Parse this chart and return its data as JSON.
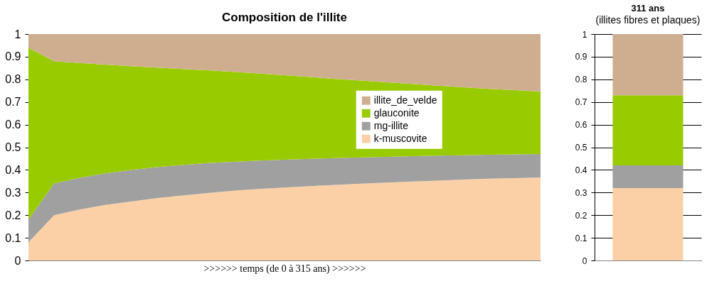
{
  "chart_data": [
    {
      "type": "area",
      "title": "Composition de l'illite",
      "xlabel": ">>>>>> temps (de 0 à 315 ans) >>>>>>",
      "categories": [
        null,
        null,
        null,
        null,
        null,
        null,
        null,
        null,
        null,
        null,
        null,
        null,
        null,
        null,
        null,
        null,
        null,
        null,
        null,
        null,
        null
      ],
      "stacked": true,
      "ylim": [
        0,
        1
      ],
      "yticks": [
        0,
        0.1,
        0.2,
        0.3,
        0.4,
        0.5,
        0.6,
        0.7,
        0.8,
        0.9,
        1
      ],
      "grid": false,
      "legend": "top right",
      "tick_labels": "y",
      "series": [
        {
          "name": "k-muscovite",
          "color": "#fcd0a6",
          "values": [
            0.08,
            0.2,
            0.225,
            0.245,
            0.26,
            0.275,
            0.287,
            0.298,
            0.308,
            0.316,
            0.322,
            0.328,
            0.334,
            0.339,
            0.344,
            0.349,
            0.353,
            0.357,
            0.361,
            0.364,
            0.367
          ]
        },
        {
          "name": "mg-illite",
          "color": "#a0a0a0",
          "values": [
            0.1,
            0.14,
            0.14,
            0.14,
            0.14,
            0.137,
            0.135,
            0.132,
            0.128,
            0.125,
            0.123,
            0.121,
            0.118,
            0.116,
            0.114,
            0.112,
            0.11,
            0.108,
            0.106,
            0.105,
            0.103
          ]
        },
        {
          "name": "glauconite",
          "color": "#99cc00",
          "values": [
            0.76,
            0.54,
            0.507,
            0.48,
            0.458,
            0.44,
            0.424,
            0.41,
            0.397,
            0.385,
            0.373,
            0.361,
            0.35,
            0.34,
            0.329,
            0.319,
            0.309,
            0.3,
            0.291,
            0.283,
            0.276
          ]
        },
        {
          "name": "illite_de_velde",
          "color": "#cfae90",
          "values": [
            0.06,
            0.12,
            0.128,
            0.135,
            0.142,
            0.148,
            0.154,
            0.16,
            0.167,
            0.174,
            0.182,
            0.19,
            0.198,
            0.205,
            0.213,
            0.22,
            0.228,
            0.235,
            0.242,
            0.248,
            0.254
          ]
        }
      ]
    },
    {
      "type": "bar",
      "title": "311 ans",
      "subtitle": "(illites fibres et plaques)",
      "categories": [
        null
      ],
      "stacked": true,
      "ylim": [
        0,
        1
      ],
      "yticks": [
        0,
        0.1,
        0.2,
        0.3,
        0.4,
        0.5,
        0.6,
        0.7,
        0.8,
        0.9,
        1
      ],
      "grid": true,
      "tick_labels": "y",
      "series": [
        {
          "color": "#fcd0a6",
          "values": [
            0.32
          ]
        },
        {
          "color": "#a0a0a0",
          "values": [
            0.1
          ]
        },
        {
          "color": "#99cc00",
          "values": [
            0.31
          ]
        },
        {
          "color": "#cfae90",
          "values": [
            0.27
          ]
        }
      ]
    }
  ]
}
